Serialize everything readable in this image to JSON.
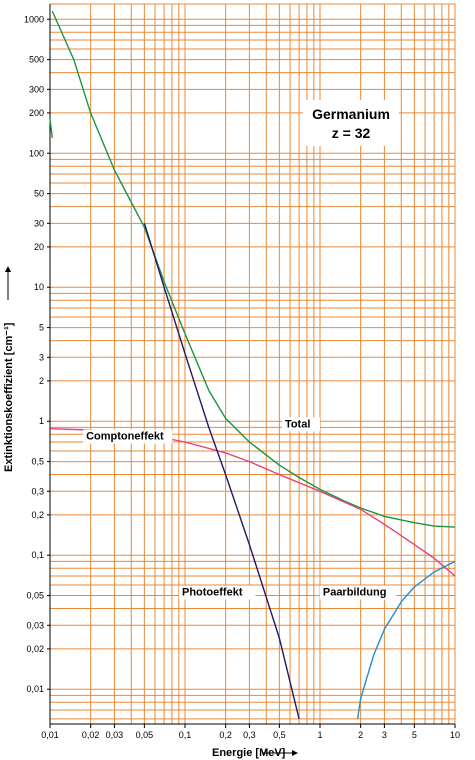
{
  "chart_data": {
    "type": "line",
    "title": "Germanium",
    "subtitle": "z = 32",
    "xlabel": "Energie [MeV]",
    "ylabel": "Extinktionskoeffizient [cm⁻¹]",
    "x_scale": "log",
    "y_scale": "log",
    "xlim": [
      0.01,
      10
    ],
    "ylim": [
      0.0055,
      1300
    ],
    "grid": true,
    "x_ticks": [
      0.01,
      0.02,
      0.03,
      0.05,
      0.1,
      0.2,
      0.3,
      0.5,
      1,
      2,
      3,
      5,
      10
    ],
    "x_tick_labels": [
      "0,01",
      "0,02",
      "0,03",
      "0,05",
      "0,1",
      "0,2",
      "0,3",
      "0,5",
      "1",
      "2",
      "3",
      "5",
      "10"
    ],
    "y_ticks": [
      0.01,
      0.02,
      0.03,
      0.05,
      0.1,
      0.2,
      0.3,
      0.5,
      1,
      2,
      3,
      5,
      10,
      20,
      30,
      50,
      100,
      200,
      300,
      500,
      1000
    ],
    "y_tick_labels": [
      "0,01",
      "0,02",
      "0,03",
      "0,05",
      "0,1",
      "0,2",
      "0,3",
      "0,5",
      "1",
      "2",
      "3",
      "5",
      "10",
      "20",
      "30",
      "50",
      "100",
      "200",
      "300",
      "500",
      "1000"
    ],
    "series": [
      {
        "name": "Total",
        "color": "#1a9641",
        "label_at": [
          0.55,
          0.9
        ],
        "segments": [
          [
            [
              0.01,
              180
            ],
            [
              0.0104,
              130
            ]
          ],
          [
            [
              0.0104,
              1150
            ],
            [
              0.015,
              500
            ],
            [
              0.02,
              200
            ],
            [
              0.03,
              75
            ],
            [
              0.05,
              28
            ],
            [
              0.07,
              11
            ],
            [
              0.1,
              4.5
            ],
            [
              0.15,
              1.7
            ],
            [
              0.2,
              1.05
            ],
            [
              0.3,
              0.7
            ],
            [
              0.5,
              0.47
            ],
            [
              0.7,
              0.38
            ],
            [
              1,
              0.31
            ],
            [
              1.5,
              0.255
            ],
            [
              2,
              0.225
            ],
            [
              3,
              0.195
            ],
            [
              5,
              0.175
            ],
            [
              7,
              0.165
            ],
            [
              10,
              0.162
            ]
          ]
        ]
      },
      {
        "name": "Comptoneffekt",
        "color": "#e6417a",
        "label_at": [
          0.0185,
          0.73
        ],
        "segments": [
          [
            [
              0.01,
              0.88
            ],
            [
              0.02,
              0.86
            ],
            [
              0.05,
              0.8
            ],
            [
              0.1,
              0.7
            ],
            [
              0.2,
              0.58
            ],
            [
              0.3,
              0.5
            ],
            [
              0.5,
              0.4
            ],
            [
              1,
              0.3
            ],
            [
              2,
              0.22
            ],
            [
              3,
              0.17
            ],
            [
              5,
              0.12
            ],
            [
              7,
              0.095
            ],
            [
              10,
              0.07
            ]
          ]
        ]
      },
      {
        "name": "Photoeffekt",
        "color": "#1f1a6e",
        "label_at": [
          0.095,
          0.05
        ],
        "segments": [
          [
            [
              0.05,
              30
            ],
            [
              0.07,
              10
            ],
            [
              0.1,
              3.2
            ],
            [
              0.15,
              0.9
            ],
            [
              0.2,
              0.4
            ],
            [
              0.3,
              0.12
            ],
            [
              0.5,
              0.024
            ],
            [
              0.7,
              0.006
            ]
          ]
        ]
      },
      {
        "name": "Paarbildung",
        "color": "#1f8fd6",
        "label_at": [
          1.05,
          0.05
        ],
        "segments": [
          [
            [
              1.9,
              0.006
            ],
            [
              2,
              0.0085
            ],
            [
              2.5,
              0.018
            ],
            [
              3,
              0.028
            ],
            [
              4,
              0.045
            ],
            [
              5,
              0.058
            ],
            [
              7,
              0.075
            ],
            [
              10,
              0.09
            ]
          ]
        ]
      }
    ]
  }
}
